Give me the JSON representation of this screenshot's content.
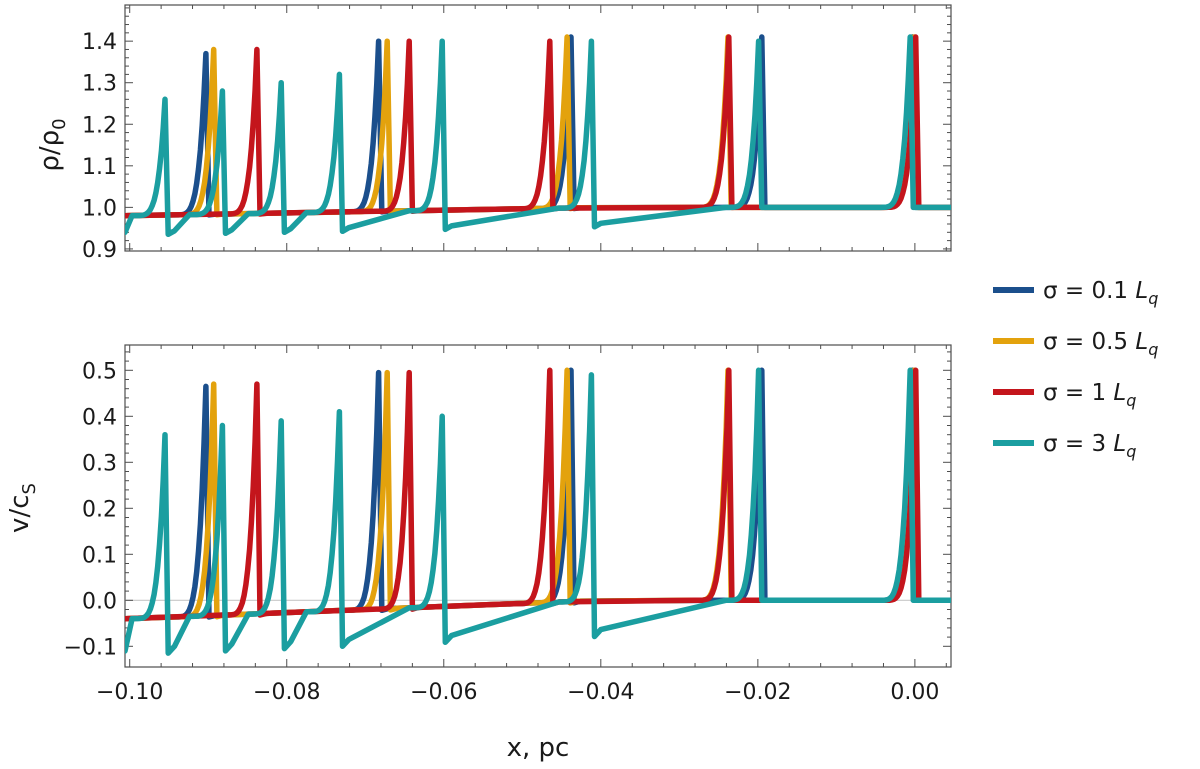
{
  "chart_data": {
    "type": "line",
    "xlabel": "x, pc",
    "x_ticks": [
      "−0.10",
      "−0.08",
      "−0.06",
      "−0.04",
      "−0.02",
      "0.00"
    ],
    "x_tick_values": [
      -0.1,
      -0.08,
      -0.06,
      -0.04,
      -0.02,
      0.0
    ],
    "xlim": [
      -0.1006,
      0.0046
    ],
    "panels": [
      {
        "id": "density",
        "ylabel_main": "ρ/ρ",
        "ylabel_sub": "0",
        "ylim": [
          0.895,
          1.487
        ],
        "y_ticks": [
          "0.9",
          "1.0",
          "1.1",
          "1.2",
          "1.3",
          "1.4"
        ],
        "y_tick_values": [
          0.9,
          1.0,
          1.1,
          1.2,
          1.3,
          1.4
        ],
        "baseline_left": 0.98,
        "baseline_right": 1.0
      },
      {
        "id": "velocity",
        "ylabel_main": "v/c",
        "ylabel_sub": "S",
        "ylim": [
          -0.145,
          0.555
        ],
        "y_ticks": [
          "−0.1",
          "0.0",
          "0.1",
          "0.2",
          "0.3",
          "0.4",
          "0.5"
        ],
        "y_tick_values": [
          -0.1,
          0.0,
          0.1,
          0.2,
          0.3,
          0.4,
          0.5
        ],
        "baseline_left": -0.04,
        "baseline_right": 0.0,
        "zero_line": true
      }
    ],
    "series": [
      {
        "name": "σ = 0.1 L_q",
        "legend_main": "σ = 0.1 ",
        "legend_L": "L",
        "legend_sub": "q",
        "color": "#1b4f8c",
        "peaks": [
          {
            "x": -0.0903,
            "rho": 1.37,
            "v": 0.465
          },
          {
            "x": -0.0683,
            "rho": 1.4,
            "v": 0.495
          },
          {
            "x": -0.0438,
            "rho": 1.41,
            "v": 0.5
          },
          {
            "x": -0.0195,
            "rho": 1.41,
            "v": 0.5
          },
          {
            "x": -0.0003,
            "rho": 1.41,
            "v": 0.5
          }
        ]
      },
      {
        "name": "σ = 0.5 L_q",
        "legend_main": "σ = 0.5 ",
        "legend_L": "L",
        "legend_sub": "q",
        "color": "#e3a20d",
        "peaks": [
          {
            "x": -0.0893,
            "rho": 1.38,
            "v": 0.47
          },
          {
            "x": -0.0672,
            "rho": 1.4,
            "v": 0.495
          },
          {
            "x": -0.0443,
            "rho": 1.41,
            "v": 0.5
          },
          {
            "x": -0.0238,
            "rho": 1.41,
            "v": 0.5
          },
          {
            "x": -0.0001,
            "rho": 1.41,
            "v": 0.5
          }
        ]
      },
      {
        "name": "σ = 1 L_q",
        "legend_main": "σ = 1 ",
        "legend_L": "L",
        "legend_sub": "q",
        "color": "#c4151c",
        "peaks": [
          {
            "x": -0.0838,
            "rho": 1.38,
            "v": 0.47
          },
          {
            "x": -0.0644,
            "rho": 1.4,
            "v": 0.495
          },
          {
            "x": -0.0465,
            "rho": 1.4,
            "v": 0.5
          },
          {
            "x": -0.0237,
            "rho": 1.41,
            "v": 0.5
          },
          {
            "x": 0.0001,
            "rho": 1.41,
            "v": 0.5
          }
        ]
      },
      {
        "name": "σ = 3 L_q",
        "legend_main": "σ = 3 ",
        "legend_L": "L",
        "legend_sub": "q",
        "color": "#1b9ea0",
        "peaks": [
          {
            "x": -0.0955,
            "rho": 1.26,
            "v": 0.36
          },
          {
            "x": -0.0882,
            "rho": 1.28,
            "v": 0.38
          },
          {
            "x": -0.0807,
            "rho": 1.3,
            "v": 0.39
          },
          {
            "x": -0.0733,
            "rho": 1.32,
            "v": 0.41
          },
          {
            "x": -0.0602,
            "rho": 1.4,
            "v": 0.4
          },
          {
            "x": -0.0412,
            "rho": 1.4,
            "v": 0.49
          },
          {
            "x": -0.0199,
            "rho": 1.4,
            "v": 0.5
          },
          {
            "x": -0.0006,
            "rho": 1.41,
            "v": 0.5
          }
        ]
      }
    ],
    "legend_position": "right"
  }
}
